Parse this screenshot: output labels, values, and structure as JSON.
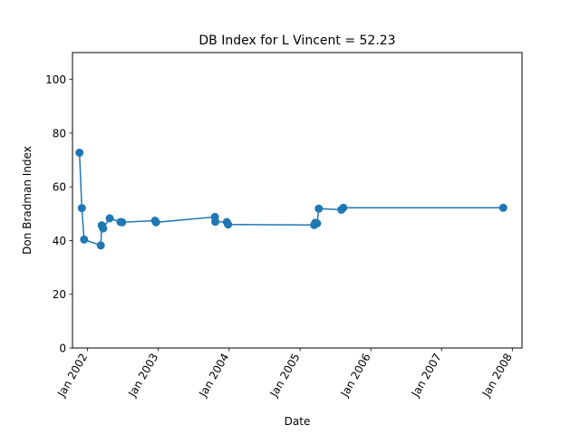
{
  "chart_data": {
    "type": "line",
    "title": "DB Index for L Vincent = 52.23",
    "xlabel": "Date",
    "ylabel": "Don Bradman Index",
    "ylim": [
      0,
      110
    ],
    "yticks": [
      0,
      20,
      40,
      60,
      80,
      100
    ],
    "xlim": [
      "2001-10-15",
      "2008-02-20"
    ],
    "xticks": [
      {
        "date": "2002-01-01",
        "label": "Jan 2002"
      },
      {
        "date": "2003-01-01",
        "label": "Jan 2003"
      },
      {
        "date": "2004-01-01",
        "label": "Jan 2004"
      },
      {
        "date": "2005-01-01",
        "label": "Jan 2005"
      },
      {
        "date": "2006-01-01",
        "label": "Jan 2006"
      },
      {
        "date": "2007-01-01",
        "label": "Jan 2007"
      },
      {
        "date": "2008-01-01",
        "label": "Jan 2008"
      }
    ],
    "grid": false,
    "color": "#1f77b4",
    "series": [
      {
        "points": [
          {
            "x": "2001-11-20",
            "y": 72.7
          },
          {
            "x": "2001-12-02",
            "y": 52.1
          },
          {
            "x": "2001-12-14",
            "y": 40.4
          },
          {
            "x": "2002-03-10",
            "y": 38.2
          },
          {
            "x": "2002-03-15",
            "y": 45.7
          },
          {
            "x": "2002-03-22",
            "y": 44.5
          },
          {
            "x": "2002-04-25",
            "y": 48.3
          },
          {
            "x": "2002-06-20",
            "y": 46.9
          },
          {
            "x": "2002-06-28",
            "y": 46.8
          },
          {
            "x": "2002-12-15",
            "y": 47.4
          },
          {
            "x": "2002-12-20",
            "y": 46.8
          },
          {
            "x": "2003-10-20",
            "y": 48.8
          },
          {
            "x": "2003-10-22",
            "y": 47.0
          },
          {
            "x": "2003-12-20",
            "y": 46.9
          },
          {
            "x": "2003-12-27",
            "y": 46.0
          },
          {
            "x": "2005-03-15",
            "y": 45.8
          },
          {
            "x": "2005-03-20",
            "y": 46.6
          },
          {
            "x": "2005-03-30",
            "y": 46.4
          },
          {
            "x": "2005-04-08",
            "y": 51.9
          },
          {
            "x": "2005-08-02",
            "y": 51.5
          },
          {
            "x": "2005-08-12",
            "y": 52.2
          },
          {
            "x": "2007-11-15",
            "y": 52.2
          }
        ]
      }
    ]
  }
}
